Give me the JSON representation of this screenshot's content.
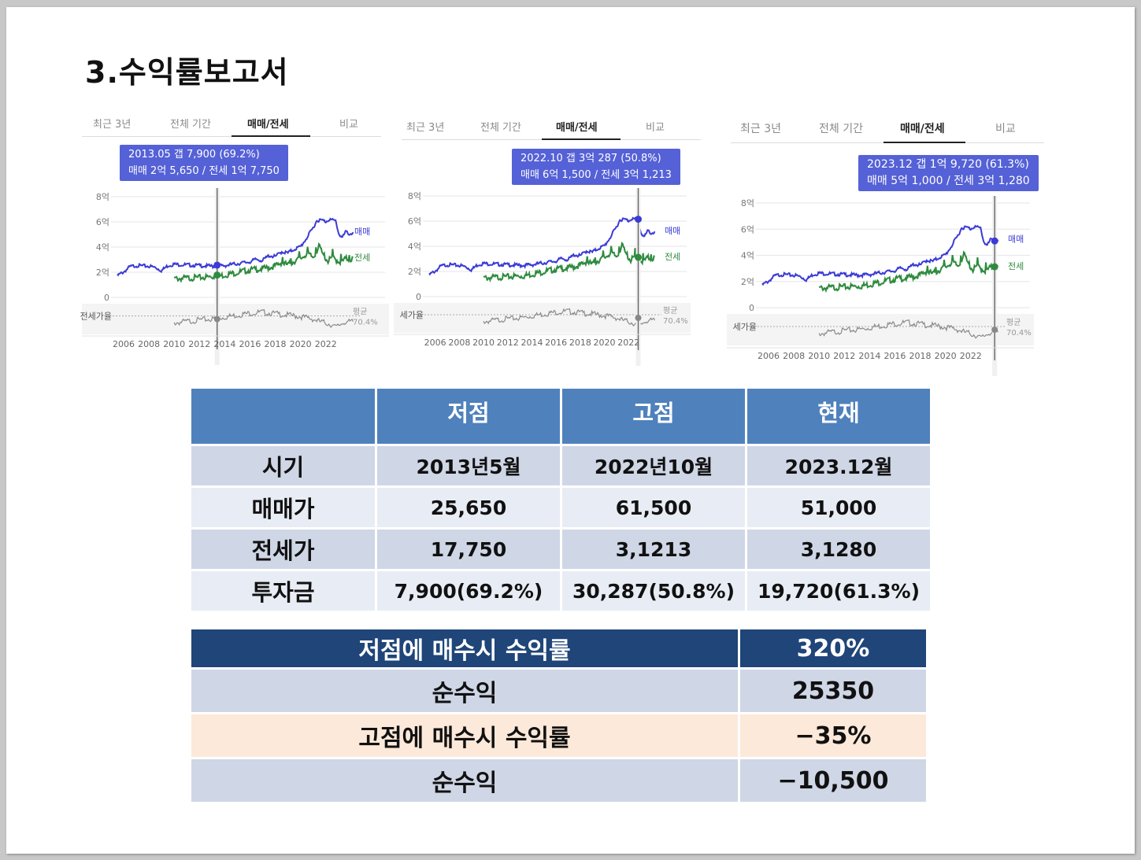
{
  "title": "3.수익률보고서",
  "tabs": [
    "최근 3년",
    "전체 기간",
    "매매/전세",
    "비교"
  ],
  "active_tab": "매매/전세",
  "series_labels": {
    "sale": "매매",
    "jeonse": "전세"
  },
  "ratio_label": "전세가율",
  "ratio_label_short_2": "세가율",
  "ratio_label_short_3": "세가율",
  "avg_label": "평균",
  "avg_value": "70.4%",
  "colors": {
    "sale": "#3b3bd6",
    "jeonse": "#2e8b3e",
    "ratio": "#8a8a8a",
    "tooltip": "#5561d6",
    "table_header": "#4f81bd",
    "table2_header": "#1f4579"
  },
  "chart_data": [
    {
      "type": "line",
      "tooltip_line1": "2013.05  갭 7,900 (69.2%)",
      "tooltip_line2": "매매 2억 5,650 / 전세 1억 7,750",
      "highlight": {
        "x": 2013.4,
        "sale": 2.565,
        "jeonse": 1.775
      },
      "y_ticks": [
        "8억",
        "6억",
        "4억",
        "2억",
        "0"
      ],
      "x_ticks": [
        "2006",
        "2008",
        "2010",
        "2012",
        "2014",
        "2016",
        "2018",
        "2020",
        "2022"
      ],
      "ylim": [
        0,
        8
      ]
    },
    {
      "type": "line",
      "tooltip_line1": "2022.10  갭 3억 287 (50.8%)",
      "tooltip_line2": "매매 6억 1,500 / 전세 3억 1,213",
      "highlight": {
        "x": 2022.8,
        "sale": 6.15,
        "jeonse": 3.1213
      },
      "y_ticks": [
        "8억",
        "6억",
        "4억",
        "2억",
        "0"
      ],
      "x_ticks": [
        "2006",
        "2008",
        "2010",
        "2012",
        "2014",
        "2016",
        "2018",
        "2020",
        "2022"
      ],
      "ylim": [
        0,
        8
      ]
    },
    {
      "type": "line",
      "tooltip_line1": "2023.12  갭 1억 9,720 (61.3%)",
      "tooltip_line2": "매매 5억 1,000 / 전세 3억 1,280",
      "highlight": {
        "x": 2023.9,
        "sale": 5.1,
        "jeonse": 3.128
      },
      "y_ticks": [
        "8억",
        "6억",
        "4억",
        "2억",
        "0"
      ],
      "x_ticks": [
        "2006",
        "2008",
        "2010",
        "2012",
        "2014",
        "2016",
        "2018",
        "2020",
        "2022"
      ],
      "ylim": [
        0,
        8
      ]
    }
  ],
  "series_shape": {
    "sale": [
      [
        2005.5,
        1.8
      ],
      [
        2006.0,
        2.1
      ],
      [
        2006.5,
        2.5
      ],
      [
        2007.0,
        2.6
      ],
      [
        2008.0,
        2.55
      ],
      [
        2008.5,
        2.45
      ],
      [
        2009.0,
        2.2
      ],
      [
        2009.5,
        2.6
      ],
      [
        2010.0,
        2.7
      ],
      [
        2011.0,
        2.65
      ],
      [
        2012.0,
        2.6
      ],
      [
        2013.0,
        2.55
      ],
      [
        2013.4,
        2.565
      ],
      [
        2014.0,
        2.6
      ],
      [
        2015.0,
        2.75
      ],
      [
        2016.0,
        2.9
      ],
      [
        2016.5,
        3.1
      ],
      [
        2017.0,
        3.0
      ],
      [
        2017.5,
        3.4
      ],
      [
        2018.0,
        3.3
      ],
      [
        2018.5,
        3.7
      ],
      [
        2019.0,
        3.6
      ],
      [
        2019.5,
        3.9
      ],
      [
        2020.0,
        4.1
      ],
      [
        2020.5,
        4.8
      ],
      [
        2021.0,
        5.6
      ],
      [
        2021.3,
        6.2
      ],
      [
        2021.7,
        6.2
      ],
      [
        2022.0,
        6.1
      ],
      [
        2022.3,
        6.3
      ],
      [
        2022.5,
        6.2
      ],
      [
        2022.8,
        6.15
      ],
      [
        2023.0,
        5.2
      ],
      [
        2023.3,
        4.8
      ],
      [
        2023.6,
        5.3
      ],
      [
        2023.9,
        5.1
      ],
      [
        2024.2,
        5.2
      ]
    ],
    "jeonse": [
      [
        2010.0,
        1.6
      ],
      [
        2011.0,
        1.65
      ],
      [
        2012.0,
        1.7
      ],
      [
        2013.0,
        1.75
      ],
      [
        2013.4,
        1.775
      ],
      [
        2014.0,
        1.9
      ],
      [
        2015.0,
        2.1
      ],
      [
        2016.0,
        2.3
      ],
      [
        2017.0,
        2.4
      ],
      [
        2018.0,
        2.6
      ],
      [
        2018.5,
        2.9
      ],
      [
        2019.0,
        2.7
      ],
      [
        2019.5,
        3.0
      ],
      [
        2020.0,
        3.2
      ],
      [
        2020.5,
        3.6
      ],
      [
        2021.0,
        3.3
      ],
      [
        2021.5,
        4.2
      ],
      [
        2021.8,
        3.4
      ],
      [
        2022.2,
        3.0
      ],
      [
        2022.5,
        3.3
      ],
      [
        2022.8,
        3.12
      ],
      [
        2023.2,
        2.9
      ],
      [
        2023.6,
        3.2
      ],
      [
        2023.9,
        3.128
      ],
      [
        2024.2,
        3.2
      ]
    ],
    "ratio": [
      [
        2010.0,
        60
      ],
      [
        2011.0,
        63
      ],
      [
        2012.0,
        66
      ],
      [
        2013.0,
        68
      ],
      [
        2013.4,
        69.2
      ],
      [
        2014.0,
        72
      ],
      [
        2015.0,
        76
      ],
      [
        2016.0,
        80
      ],
      [
        2017.0,
        82
      ],
      [
        2018.0,
        79
      ],
      [
        2019.0,
        76
      ],
      [
        2020.0,
        73
      ],
      [
        2021.0,
        68
      ],
      [
        2021.5,
        63
      ],
      [
        2022.0,
        60
      ],
      [
        2022.5,
        56
      ],
      [
        2022.8,
        50.8
      ],
      [
        2023.2,
        58
      ],
      [
        2023.6,
        63
      ],
      [
        2023.9,
        61.3
      ],
      [
        2024.2,
        63
      ]
    ]
  },
  "table1": {
    "headers": [
      "",
      "저점",
      "고점",
      "현재"
    ],
    "rows": [
      {
        "label": "시기",
        "values": [
          "2013년5월",
          "2022년10월",
          "2023.12월"
        ]
      },
      {
        "label": "매매가",
        "values": [
          "25,650",
          "61,500",
          "51,000"
        ]
      },
      {
        "label": "전세가",
        "values": [
          "17,750",
          "3,1213",
          "3,1280"
        ]
      },
      {
        "label": "투자금",
        "values": [
          "7,900(69.2%)",
          "30,287(50.8%)",
          "19,720(61.3%)"
        ]
      }
    ]
  },
  "table2": {
    "rows": [
      {
        "label": "저점에 매수시 수익률",
        "value": "320%"
      },
      {
        "label": "순수익",
        "value": "25350"
      },
      {
        "label": "고점에 매수시 수익률",
        "value": "−35%"
      },
      {
        "label": "순수익",
        "value": "−10,500"
      }
    ]
  }
}
